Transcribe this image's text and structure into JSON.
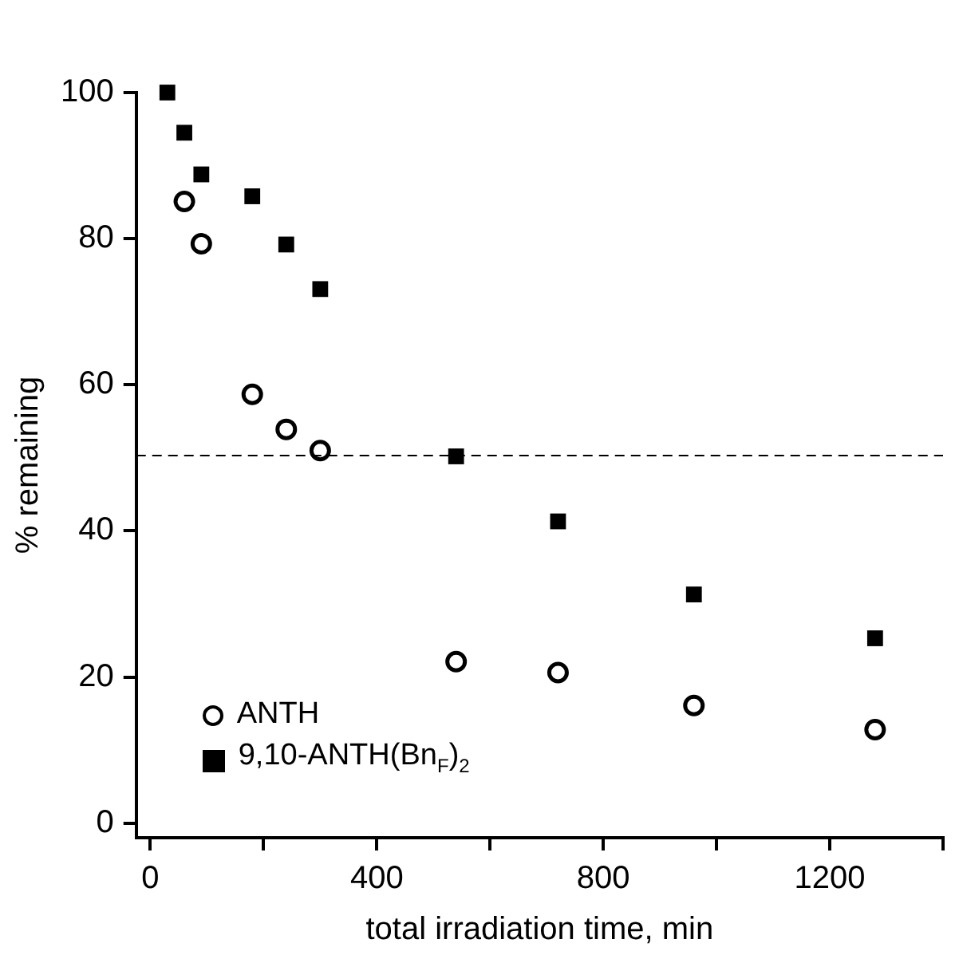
{
  "chart_data": {
    "type": "scatter",
    "xlabel": "total irradiation time, min",
    "ylabel": "% remaining",
    "xlim": [
      -25,
      1400
    ],
    "xticks": [
      0,
      {
        "value": 200,
        "label": null
      },
      400,
      {
        "value": 600,
        "label": null
      },
      800,
      {
        "value": 1000,
        "label": null
      },
      1200,
      {
        "value": 1400,
        "label": null
      }
    ],
    "ylim": [
      -2,
      100
    ],
    "yticks": [
      0,
      20,
      40,
      60,
      80,
      100
    ],
    "series": [
      {
        "name": "ANTH",
        "color": "#000000",
        "marker": "circle",
        "x": [
          60,
          90,
          180,
          240,
          300,
          540,
          720,
          960,
          1280
        ],
        "values": [
          85.1,
          79.3,
          58.7,
          53.9,
          51,
          22.1,
          20.6,
          16.1,
          12.8
        ]
      },
      {
        "name": "9,10-ANTH(Bn$_{F}$)$_{2}$",
        "color": "#000000",
        "marker": "square",
        "x": [
          30,
          60,
          90,
          180,
          240,
          300,
          540,
          720,
          960,
          1280
        ],
        "values": [
          100,
          94.5,
          88.8,
          85.8,
          79.2,
          73.1,
          50.2,
          41.3,
          31.3,
          25.3
        ]
      }
    ],
    "ref_lines": [
      {
        "axis": "y",
        "value": 50.3,
        "line_style": "dashed"
      }
    ],
    "legend": "bottom left",
    "grid": false
  }
}
